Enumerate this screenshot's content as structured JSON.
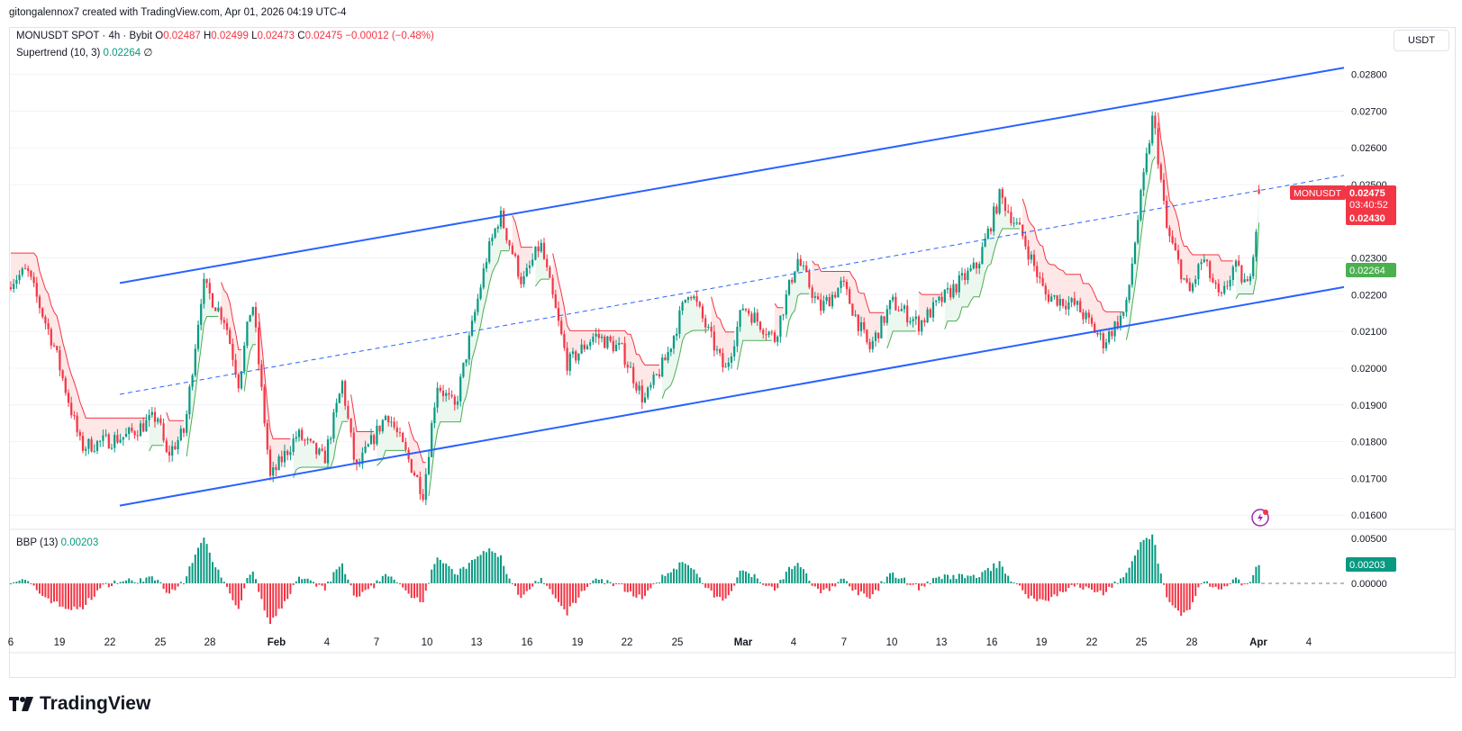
{
  "header": {
    "credit": "gitongalennox7 created with TradingView.com, Apr 01, 2026 04:19 UTC-4"
  },
  "legend": {
    "symbol": "MONUSDT SPOT · 4h · Bybit",
    "o_label": "O",
    "o_value": "0.02487",
    "h_label": "H",
    "h_value": "0.02499",
    "l_label": "L",
    "l_value": "0.02473",
    "c_label": "C",
    "c_value": "0.02475",
    "change": "−0.00012 (−0.48%)",
    "supertrend_label": "Supertrend (10, 3)",
    "supertrend_value": "0.02264",
    "supertrend_extra": "∅",
    "bbp_label": "BBP (13)",
    "bbp_value": "0.00203"
  },
  "currency_button": "USDT",
  "branding": "TradingView",
  "colors": {
    "up": "#089981",
    "down": "#f23645",
    "channel": "#2962ff",
    "st_up_fill": "#e9f6ed",
    "st_down_fill": "#fde4e4"
  },
  "chart_data": {
    "type": "candlestick",
    "timeframe": "4h",
    "y_axis_ticks": [
      "0.02800",
      "0.02700",
      "0.02600",
      "0.02500",
      "0.02300",
      "0.02200",
      "0.02100",
      "0.02000",
      "0.01900",
      "0.01800",
      "0.01700",
      "0.01600"
    ],
    "ylim": [
      0.0155,
      0.0289
    ],
    "x_axis_ticks": [
      "6",
      "19",
      "22",
      "25",
      "28",
      "Feb",
      "4",
      "7",
      "10",
      "13",
      "16",
      "19",
      "22",
      "25",
      "Mar",
      "4",
      "7",
      "10",
      "13",
      "16",
      "19",
      "22",
      "25",
      "28",
      "Apr",
      "4"
    ],
    "price_path": [
      {
        "x": 0,
        "close": 0.0222
      },
      {
        "x": 30,
        "close": 0.02265
      },
      {
        "x": 60,
        "close": 0.0206
      },
      {
        "x": 90,
        "close": 0.01785
      },
      {
        "x": 140,
        "close": 0.01815
      },
      {
        "x": 175,
        "close": 0.0187
      },
      {
        "x": 185,
        "close": 0.0176
      },
      {
        "x": 205,
        "close": 0.0183
      },
      {
        "x": 225,
        "close": 0.0223
      },
      {
        "x": 250,
        "close": 0.0213
      },
      {
        "x": 265,
        "close": 0.0196
      },
      {
        "x": 280,
        "close": 0.0219
      },
      {
        "x": 300,
        "close": 0.017
      },
      {
        "x": 330,
        "close": 0.0182
      },
      {
        "x": 360,
        "close": 0.0175
      },
      {
        "x": 380,
        "close": 0.0196
      },
      {
        "x": 395,
        "close": 0.0172
      },
      {
        "x": 430,
        "close": 0.0188
      },
      {
        "x": 470,
        "close": 0.0166
      },
      {
        "x": 485,
        "close": 0.0196
      },
      {
        "x": 505,
        "close": 0.0189
      },
      {
        "x": 540,
        "close": 0.023
      },
      {
        "x": 555,
        "close": 0.0242
      },
      {
        "x": 580,
        "close": 0.0223
      },
      {
        "x": 600,
        "close": 0.0234
      },
      {
        "x": 630,
        "close": 0.0201
      },
      {
        "x": 660,
        "close": 0.0209
      },
      {
        "x": 690,
        "close": 0.0205
      },
      {
        "x": 715,
        "close": 0.0191
      },
      {
        "x": 740,
        "close": 0.0203
      },
      {
        "x": 765,
        "close": 0.0222
      },
      {
        "x": 805,
        "close": 0.0199
      },
      {
        "x": 825,
        "close": 0.0217
      },
      {
        "x": 860,
        "close": 0.0208
      },
      {
        "x": 885,
        "close": 0.023
      },
      {
        "x": 910,
        "close": 0.0216
      },
      {
        "x": 935,
        "close": 0.0223
      },
      {
        "x": 965,
        "close": 0.0205
      },
      {
        "x": 990,
        "close": 0.0218
      },
      {
        "x": 1020,
        "close": 0.0212
      },
      {
        "x": 1055,
        "close": 0.0221
      },
      {
        "x": 1085,
        "close": 0.0228
      },
      {
        "x": 1110,
        "close": 0.0247
      },
      {
        "x": 1135,
        "close": 0.0236
      },
      {
        "x": 1160,
        "close": 0.022
      },
      {
        "x": 1195,
        "close": 0.0217
      },
      {
        "x": 1225,
        "close": 0.0207
      },
      {
        "x": 1250,
        "close": 0.0216
      },
      {
        "x": 1265,
        "close": 0.0244
      },
      {
        "x": 1280,
        "close": 0.0269
      },
      {
        "x": 1295,
        "close": 0.0238
      },
      {
        "x": 1320,
        "close": 0.022
      },
      {
        "x": 1335,
        "close": 0.023
      },
      {
        "x": 1355,
        "close": 0.0218
      },
      {
        "x": 1370,
        "close": 0.0228
      },
      {
        "x": 1385,
        "close": 0.0222
      },
      {
        "x": 1400,
        "close": 0.02475
      }
    ],
    "channel": {
      "upper": [
        [
          133,
          0.02232
        ],
        [
          1492,
          0.02818
        ]
      ],
      "lower": [
        [
          133,
          0.01626
        ],
        [
          1492,
          0.02221
        ]
      ],
      "midline": [
        [
          133,
          0.01929
        ],
        [
          1492,
          0.02525
        ]
      ]
    },
    "price_labels": {
      "symbol": "MONUSDT",
      "last_price": "0.02475",
      "countdown": "03:40:52",
      "supertrend_down": "0.02430",
      "supertrend_up": "0.02264"
    },
    "bbp": {
      "y_axis_ticks": [
        "0.00500",
        "0.00000"
      ],
      "last_value": "0.00203"
    }
  }
}
